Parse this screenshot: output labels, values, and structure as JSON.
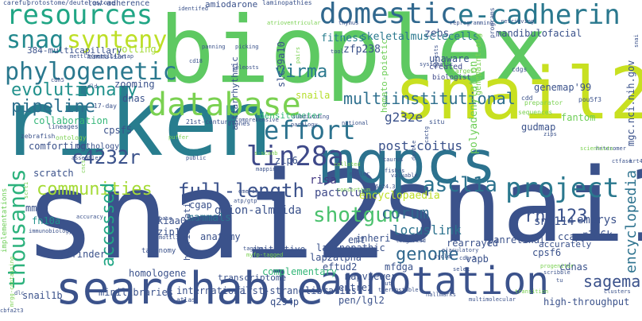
{
  "words": [
    {
      "text": "snai2",
      "color": "#3b528b"
    },
    {
      "text": "riken",
      "color": "#287d8e"
    },
    {
      "text": "bioplex",
      "color": "#5ec962"
    },
    {
      "text": "snai1",
      "color": "#3b528b"
    },
    {
      "text": "snail2",
      "color": "#c8e020"
    },
    {
      "text": "mgpcs",
      "color": "#2c728e"
    },
    {
      "text": "searchable",
      "color": "#3b528b"
    },
    {
      "text": "annotation",
      "color": "#3b528b"
    },
    {
      "text": "database",
      "color": "#7ad151"
    },
    {
      "text": "resources",
      "color": "#21a685"
    },
    {
      "text": "snag",
      "color": "#23898e"
    },
    {
      "text": "synteny",
      "color": "#bddf26"
    },
    {
      "text": "phylogenetic",
      "color": "#2a788e"
    },
    {
      "text": "domestic",
      "color": "#31688e"
    },
    {
      "text": "e-cadherin",
      "color": "#2a788e"
    },
    {
      "text": "multiinstitutional",
      "color": "#2e6f8e"
    },
    {
      "text": "evolutionary",
      "color": "#21918c"
    },
    {
      "text": "pipeline",
      "color": "#2d708e"
    },
    {
      "text": "effort",
      "color": "#2c728e"
    },
    {
      "text": "lin28a",
      "color": "#3e4989"
    },
    {
      "text": "thousands",
      "color": "#2db27d"
    },
    {
      "text": "communities",
      "color": "#a5db36"
    },
    {
      "text": "project",
      "color": "#2a788e"
    },
    {
      "text": "ascl1a",
      "color": "#2c728e"
    },
    {
      "text": "full-length",
      "color": "#3b528b"
    },
    {
      "text": "shotgun",
      "color": "#4ac16d"
    },
    {
      "text": "corum",
      "color": "#31688e"
    },
    {
      "text": "accessed",
      "color": "#21a685"
    },
    {
      "text": "c4232r",
      "color": "#3b528b"
    },
    {
      "text": "rnf123",
      "color": "#3b528b"
    },
    {
      "text": "sagemap",
      "color": "#3b528b"
    },
    {
      "text": "genome",
      "color": "#31688e"
    },
    {
      "text": "encyclopedia",
      "color": "#2c728e"
    },
    {
      "text": "virma",
      "color": "#2a788e"
    },
    {
      "text": "g232e",
      "color": "#3b528b"
    },
    {
      "text": "post-coitus",
      "color": "#3b528b"
    },
    {
      "text": "risa",
      "color": "#443983"
    },
    {
      "text": "pactolus",
      "color": "#3e4989"
    },
    {
      "text": "encyclopaedia",
      "color": "#bddf26"
    },
    {
      "text": "embrys",
      "color": "#3b528b"
    },
    {
      "text": "guion-almeida",
      "color": "#3b528b"
    },
    {
      "text": "locuslink",
      "color": "#2c728e"
    },
    {
      "text": "snu114",
      "color": "#3b528b"
    },
    {
      "text": "r386k",
      "color": "#3b528b"
    },
    {
      "text": "zfp238",
      "color": "#3b528b"
    },
    {
      "text": "zebs",
      "color": "#3b528b"
    },
    {
      "text": "skeletalmusclecells",
      "color": "#2a788e"
    },
    {
      "text": "fitness",
      "color": "#287d8e"
    },
    {
      "text": "mandibulofacial",
      "color": "#3b528b"
    },
    {
      "text": "unaware",
      "color": "#3b528b"
    },
    {
      "text": "created",
      "color": "#3e4989"
    },
    {
      "text": "biologist",
      "color": "#3e4989"
    },
    {
      "text": "collaboration",
      "color": "#35b779"
    },
    {
      "text": "cpsf5",
      "color": "#3b528b"
    },
    {
      "text": "comforting",
      "color": "#3b528b"
    },
    {
      "text": "orthology",
      "color": "#3b528b"
    },
    {
      "text": "scratch",
      "color": "#3b528b"
    },
    {
      "text": "dnas",
      "color": "#3b528b"
    },
    {
      "text": "zooming",
      "color": "#3b528b"
    },
    {
      "text": "mammals",
      "color": "#2c728e"
    },
    {
      "text": "cgap",
      "color": "#3b528b"
    },
    {
      "text": "kiaa0233",
      "color": "#3b528b"
    },
    {
      "text": "zip10",
      "color": "#3b528b"
    },
    {
      "text": "anatomy",
      "color": "#3b528b"
    },
    {
      "text": "fn10a",
      "color": "#21918c"
    },
    {
      "text": "mmdb",
      "color": "#3b528b"
    },
    {
      "text": "orffinder",
      "color": "#3b528b"
    },
    {
      "text": "homologene",
      "color": "#3b528b"
    },
    {
      "text": "minilibraries",
      "color": "#3b528b"
    },
    {
      "text": "snail1b",
      "color": "#3b528b"
    },
    {
      "text": "international",
      "color": "#3b528b"
    },
    {
      "text": "first-strand",
      "color": "#3b528b"
    },
    {
      "text": "libraries",
      "color": "#3b528b"
    },
    {
      "text": "q294p",
      "color": "#3b528b"
    },
    {
      "text": "mapviewer",
      "color": "#3b528b"
    },
    {
      "text": "entrez",
      "color": "#3b528b"
    },
    {
      "text": "pen/lgl2",
      "color": "#3b528b"
    },
    {
      "text": "vapb",
      "color": "#3b528b"
    },
    {
      "text": "cdnas",
      "color": "#3b528b"
    },
    {
      "text": "cpsf6",
      "color": "#3b528b"
    },
    {
      "text": "high-throughput",
      "color": "#3b528b"
    },
    {
      "text": "panretinal",
      "color": "#3b528b"
    },
    {
      "text": "ccap",
      "color": "#3b528b"
    },
    {
      "text": "accurately",
      "color": "#3b528b"
    },
    {
      "text": "rearrayed",
      "color": "#3b528b"
    },
    {
      "text": "inheri-tance",
      "color": "#3b528b"
    },
    {
      "text": "laminopathic",
      "color": "#3b528b"
    },
    {
      "text": "emt",
      "color": "#3b528b"
    },
    {
      "text": "lap2alpha",
      "color": "#3b528b"
    },
    {
      "text": "eftud2",
      "color": "#3b528b"
    },
    {
      "text": "mfdga",
      "color": "#3b528b"
    },
    {
      "text": "complementary",
      "color": "#35b779"
    },
    {
      "text": "hybridization",
      "color": "#3b528b"
    },
    {
      "text": "initiative",
      "color": "#3b528b"
    },
    {
      "text": "transcriptome",
      "color": "#3b528b"
    },
    {
      "text": "mgc.nci.nih.gov",
      "color": "#3b528b"
    },
    {
      "text": "polyadenylation",
      "color": "#6ece58"
    },
    {
      "text": "genemap'99",
      "color": "#3b528b"
    },
    {
      "text": "snaila",
      "color": "#b5de2b"
    },
    {
      "text": "slc39a10",
      "color": "#3b528b"
    },
    {
      "text": "antiarrhythmic",
      "color": "#3b528b"
    },
    {
      "text": "hemato-poietic",
      "color": "#6ece58"
    },
    {
      "text": "zip6",
      "color": "#3b528b"
    },
    {
      "text": "gudmap",
      "color": "#3b528b"
    },
    {
      "text": "fantom",
      "color": "#6ece58"
    },
    {
      "text": "genepaint.org",
      "color": "#7ad151"
    },
    {
      "text": "amiodarone",
      "color": "#3b528b"
    },
    {
      "text": "densitometer",
      "color": "#35b779"
    },
    {
      "text": "low-adherence",
      "color": "#3b528b"
    },
    {
      "text": "polling",
      "color": "#a5db36"
    },
    {
      "text": "384-multicapillary",
      "color": "#3b528b"
    },
    {
      "text": "mammalian",
      "color": "#3b528b"
    },
    {
      "text": "taxonomy",
      "color": "#3b528b"
    },
    {
      "text": "atlas",
      "color": "#3b528b"
    },
    {
      "text": "implementations",
      "color": "#6ece58"
    },
    {
      "text": "careful",
      "color": "#3b528b"
    },
    {
      "text": "protostome/deuterostome",
      "color": "#3b528b"
    },
    {
      "text": "laminopathies",
      "color": "#3b528b"
    },
    {
      "text": "mettl3/mettl14/wtap",
      "color": "#3b528b"
    },
    {
      "text": "zebrafish",
      "color": "#3b528b"
    },
    {
      "text": "lineages",
      "color": "#3b528b"
    },
    {
      "text": "ontology",
      "color": "#7ad151"
    },
    {
      "text": "17-day",
      "color": "#3b528b"
    },
    {
      "text": "clones",
      "color": "#3b528b"
    },
    {
      "text": "21st-century",
      "color": "#3b528b"
    },
    {
      "text": "comprehensive",
      "color": "#3b528b"
    },
    {
      "text": "paralogy",
      "color": "#3b528b"
    },
    {
      "text": "national",
      "color": "#3b528b"
    },
    {
      "text": "subdividing",
      "color": "#3b528b"
    },
    {
      "text": "situ",
      "color": "#3b528b"
    },
    {
      "text": "sequences",
      "color": "#7ad151"
    },
    {
      "text": "pou5f3",
      "color": "#3b528b"
    },
    {
      "text": "cdd",
      "color": "#3b528b"
    },
    {
      "text": "preparator",
      "color": "#7ad151"
    },
    {
      "text": "largest",
      "color": "#7ad151"
    },
    {
      "text": "cdgs",
      "color": "#3b528b"
    },
    {
      "text": "programs",
      "color": "#3b528b"
    },
    {
      "text": "retrieving",
      "color": "#3b528b"
    },
    {
      "text": "reprogramming",
      "color": "#3b528b"
    },
    {
      "text": "tool",
      "color": "#3b528b"
    },
    {
      "text": "picking",
      "color": "#3b528b"
    },
    {
      "text": "cd18",
      "color": "#3b528b"
    },
    {
      "text": "teleosts",
      "color": "#3b528b"
    },
    {
      "text": "pairs",
      "color": "#7ad151"
    },
    {
      "text": "thymus",
      "color": "#3b528b"
    },
    {
      "text": "panning",
      "color": "#3b528b"
    },
    {
      "text": "systematic",
      "color": "#3b528b"
    },
    {
      "text": "forests",
      "color": "#3b528b"
    },
    {
      "text": "taurus",
      "color": "#3b528b"
    },
    {
      "text": "fishes",
      "color": "#3b528b"
    },
    {
      "text": "muller",
      "color": "#3b528b"
    },
    {
      "text": "collated",
      "color": "#7ad151"
    },
    {
      "text": "cactg",
      "color": "#3b528b"
    },
    {
      "text": "valuable",
      "color": "#3b528b"
    },
    {
      "text": "zips",
      "color": "#3b528b"
    },
    {
      "text": "heteromer",
      "color": "#3b528b"
    },
    {
      "text": "scientists",
      "color": "#7ad151"
    },
    {
      "text": "krt4",
      "color": "#3b528b"
    },
    {
      "text": "ctfase",
      "color": "#3b528b"
    },
    {
      "text": "cncs",
      "color": "#7ad151"
    },
    {
      "text": "assembler",
      "color": "#3b528b"
    },
    {
      "text": "puffer",
      "color": "#7ad151"
    },
    {
      "text": "public",
      "color": "#3b528b"
    },
    {
      "text": "s-scanb",
      "color": "#7ad151"
    },
    {
      "text": "mapping",
      "color": "#3b528b"
    },
    {
      "text": "scrt1",
      "color": "#7ad151"
    },
    {
      "text": "emerin",
      "color": "#3b528b"
    },
    {
      "text": "atp/gtp",
      "color": "#3b528b"
    },
    {
      "text": "accuracy",
      "color": "#3b528b"
    },
    {
      "text": "base",
      "color": "#3b528b"
    },
    {
      "text": "immunobiology",
      "color": "#3b528b"
    },
    {
      "text": "motility",
      "color": "#3b528b"
    },
    {
      "text": "taggtg",
      "color": "#3b528b"
    },
    {
      "text": "myfp-tagged",
      "color": "#7ad151"
    },
    {
      "text": "consortium",
      "color": "#7ad151"
    },
    {
      "text": "16q24.3",
      "color": "#3b528b"
    },
    {
      "text": "long-read",
      "color": "#3b528b"
    },
    {
      "text": "ejaculatory",
      "color": "#3b528b"
    },
    {
      "text": "cycler",
      "color": "#3b528b"
    },
    {
      "text": "cdh-5",
      "color": "#3b528b"
    },
    {
      "text": "lut",
      "color": "#3b528b"
    },
    {
      "text": "thermostable",
      "color": "#3b528b"
    },
    {
      "text": "hallmarks",
      "color": "#3b528b"
    },
    {
      "text": "multimolecular",
      "color": "#3b528b"
    },
    {
      "text": "transition",
      "color": "#7ad151"
    },
    {
      "text": "tu",
      "color": "#3b528b"
    },
    {
      "text": "selex",
      "color": "#3b528b"
    },
    {
      "text": "scribble",
      "color": "#3b528b"
    },
    {
      "text": "clusters",
      "color": "#3b528b"
    },
    {
      "text": "progenitor",
      "color": "#7ad151"
    },
    {
      "text": "double",
      "color": "#3b528b"
    },
    {
      "text": "dlc",
      "color": "#3b528b"
    },
    {
      "text": "mrgg-containing",
      "color": "#7ad151"
    },
    {
      "text": "cbfa2t3",
      "color": "#3b528b"
    },
    {
      "text": "dld",
      "color": "#3b528b"
    },
    {
      "text": "cdh5",
      "color": "#3b528b"
    },
    {
      "text": "identifed",
      "color": "#3b528b"
    },
    {
      "text": "atrioventricular",
      "color": "#7ad151"
    },
    {
      "text": "snai",
      "color": "#3b528b"
    }
  ]
}
